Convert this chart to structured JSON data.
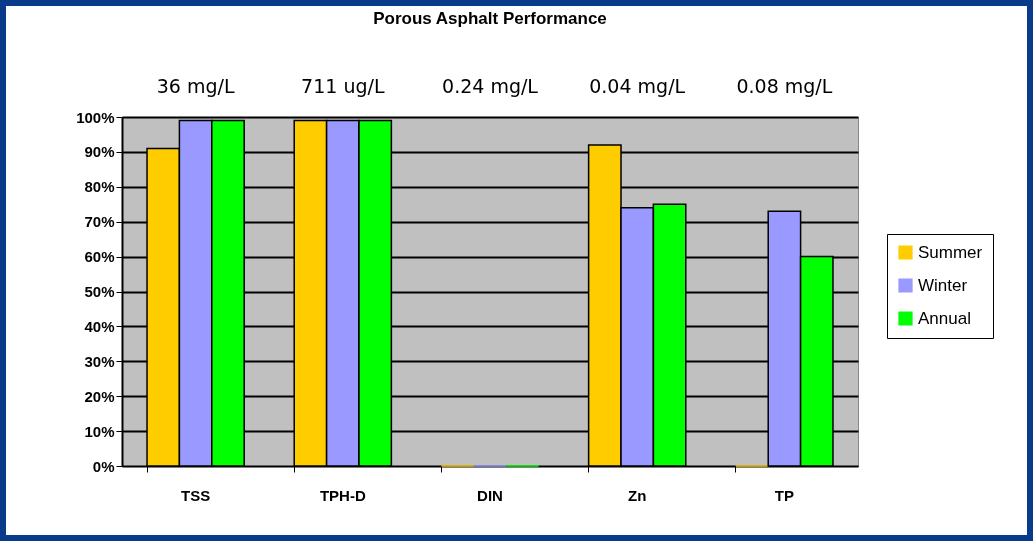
{
  "chart_data": {
    "type": "bar",
    "title": "Porous Asphalt Performance",
    "categories": [
      "TSS",
      "TPH-D",
      "DIN",
      "Zn",
      "TP"
    ],
    "series": [
      {
        "name": "Summer",
        "color": "#ffcc00",
        "values": [
          91,
          99,
          0,
          92,
          0
        ]
      },
      {
        "name": "Winter",
        "color": "#9999ff",
        "values": [
          99,
          99,
          0,
          74,
          73
        ]
      },
      {
        "name": "Annual",
        "color": "#00ff00",
        "values": [
          99,
          99,
          0,
          75,
          60
        ]
      }
    ],
    "annotations": [
      "36 mg/L",
      "711 ug/L",
      "0.24 mg/L",
      "0.04 mg/L",
      "0.08 mg/L"
    ],
    "ylim": [
      0,
      100
    ],
    "yticks": [
      {
        "value": 0,
        "label": "0%"
      },
      {
        "value": 10,
        "label": "10%"
      },
      {
        "value": 20,
        "label": "20%"
      },
      {
        "value": 30,
        "label": "30%"
      },
      {
        "value": 40,
        "label": "40%"
      },
      {
        "value": 50,
        "label": "50%"
      },
      {
        "value": 60,
        "label": "60%"
      },
      {
        "value": 70,
        "label": "70%"
      },
      {
        "value": 80,
        "label": "80%"
      },
      {
        "value": 90,
        "label": "90%"
      },
      {
        "value": 100,
        "label": "100%"
      }
    ],
    "grid": "y",
    "legend": "right"
  }
}
